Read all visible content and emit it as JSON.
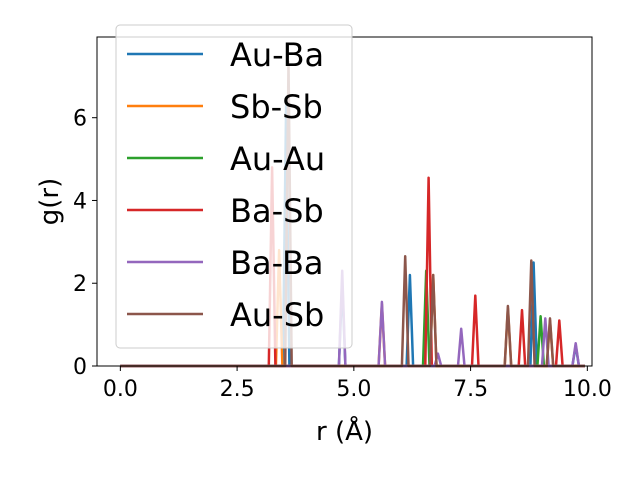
{
  "chart_data": {
    "type": "line",
    "title": "",
    "xlabel": "r (Å)",
    "ylabel": "g(r)",
    "xlim": [
      -0.5,
      10.1
    ],
    "ylim": [
      0,
      7.95
    ],
    "grid": false,
    "legend_position": "upper left",
    "x_ticks": [
      0.0,
      2.5,
      5.0,
      7.5,
      10.0
    ],
    "x_tick_labels": [
      "0.0",
      "2.5",
      "5.0",
      "7.5",
      "10.0"
    ],
    "y_ticks": [
      0,
      2,
      4,
      6
    ],
    "y_tick_labels": [
      "0",
      "2",
      "4",
      "6"
    ],
    "series": [
      {
        "name": "Au-Ba",
        "color": "#1f77b4",
        "peaks": [
          [
            3.55,
            6.3
          ],
          [
            4.75,
            2.0
          ],
          [
            6.2,
            2.2
          ],
          [
            8.85,
            2.5
          ],
          [
            9.75,
            0.5
          ]
        ]
      },
      {
        "name": "Sb-Sb",
        "color": "#ff7f0e",
        "peaks": [
          [
            3.4,
            2.8
          ],
          [
            5.6,
            1.5
          ],
          [
            6.7,
            2.2
          ],
          [
            8.3,
            1.4
          ],
          [
            9.2,
            1.1
          ]
        ]
      },
      {
        "name": "Au-Au",
        "color": "#2ca02c",
        "peaks": [
          [
            6.55,
            2.3
          ],
          [
            9.0,
            1.2
          ]
        ]
      },
      {
        "name": "Ba-Sb",
        "color": "#d62728",
        "peaks": [
          [
            3.25,
            4.8
          ],
          [
            6.6,
            4.55
          ],
          [
            7.6,
            1.7
          ],
          [
            8.6,
            1.35
          ],
          [
            9.4,
            1.1
          ]
        ]
      },
      {
        "name": "Ba-Ba",
        "color": "#9467bd",
        "peaks": [
          [
            4.75,
            2.3
          ],
          [
            5.6,
            1.55
          ],
          [
            6.8,
            0.3
          ],
          [
            7.3,
            0.9
          ],
          [
            9.1,
            1.15
          ],
          [
            9.75,
            0.55
          ]
        ]
      },
      {
        "name": "Au-Sb",
        "color": "#8c564b",
        "peaks": [
          [
            3.6,
            7.35
          ],
          [
            6.1,
            2.65
          ],
          [
            6.7,
            2.2
          ],
          [
            8.3,
            1.45
          ],
          [
            8.8,
            2.55
          ],
          [
            9.2,
            1.15
          ]
        ]
      }
    ]
  }
}
